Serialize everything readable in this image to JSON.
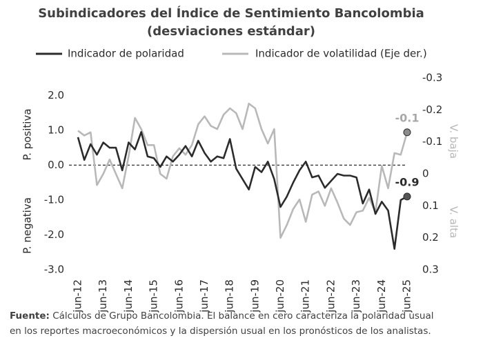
{
  "chart_data": {
    "type": "line",
    "title": "Subindicadores del Índice de Sentimiento Bancolombia",
    "subtitle": "(desviaciones estándar)",
    "categories": [
      "jun-12",
      null,
      null,
      null,
      "jun-13",
      null,
      null,
      null,
      "jun-14",
      null,
      null,
      null,
      "jun-15",
      null,
      null,
      null,
      "jun-16",
      null,
      null,
      null,
      "jun-17",
      null,
      null,
      null,
      "jun-18",
      null,
      null,
      null,
      "jun-19",
      null,
      null,
      null,
      "jun-20",
      null,
      null,
      null,
      "jun-21",
      null,
      null,
      null,
      "jun-22",
      null,
      null,
      null,
      "jun-23",
      null,
      null,
      null,
      "jun-24",
      null,
      null,
      null,
      "jun-25"
    ],
    "series": [
      {
        "name": "Indicador de polaridad",
        "color": "#2b2b2b",
        "values": [
          0.8,
          0.15,
          0.6,
          0.3,
          0.65,
          0.5,
          0.5,
          -0.15,
          0.65,
          0.45,
          0.95,
          0.25,
          0.2,
          -0.05,
          0.25,
          0.1,
          0.3,
          0.55,
          0.25,
          0.7,
          0.35,
          0.1,
          0.25,
          0.2,
          0.75,
          -0.1,
          -0.4,
          -0.7,
          -0.05,
          -0.2,
          0.1,
          -0.4,
          -1.2,
          -0.9,
          -0.5,
          -0.15,
          0.1,
          -0.35,
          -0.3,
          -0.65,
          -0.45,
          -0.25,
          -0.3,
          -0.3,
          -0.35,
          -1.1,
          -0.7,
          -1.4,
          -1.05,
          -1.3,
          -2.4,
          -1.0,
          -0.9
        ]
      },
      {
        "name": "Indicador de volatilidad (Eje der.)",
        "color": "#b8b8b8",
        "axis": "y2",
        "values": [
          -0.135,
          -0.12,
          -0.13,
          0.035,
          0.0,
          -0.045,
          0.0,
          0.045,
          -0.055,
          -0.175,
          -0.14,
          -0.09,
          -0.09,
          0.0,
          0.015,
          -0.055,
          -0.08,
          -0.06,
          -0.09,
          -0.155,
          -0.18,
          -0.15,
          -0.14,
          -0.185,
          -0.205,
          -0.19,
          -0.14,
          -0.22,
          -0.205,
          -0.14,
          -0.095,
          -0.14,
          0.2,
          0.16,
          0.11,
          0.08,
          0.15,
          0.065,
          0.055,
          0.1,
          0.045,
          0.09,
          0.14,
          0.16,
          0.12,
          0.115,
          0.075,
          0.12,
          -0.025,
          0.045,
          -0.065,
          -0.06,
          -0.13
        ],
        "value_labels": [
          null,
          null,
          null,
          null,
          null,
          null,
          null,
          null,
          null,
          null,
          null,
          null,
          null,
          null,
          null,
          null,
          null,
          null,
          null,
          null,
          null,
          null,
          null,
          null,
          null,
          null,
          null,
          null,
          null,
          null,
          null,
          null,
          null,
          null,
          null,
          null,
          null,
          null,
          null,
          null,
          null,
          null,
          null,
          null,
          null,
          null,
          null,
          null,
          null,
          null,
          null,
          null,
          "-0.1"
        ]
      }
    ],
    "ylim": [
      -3,
      2.5
    ],
    "yticks": [
      {
        "value": 2,
        "label": "2.0"
      },
      {
        "value": 1,
        "label": "1.0"
      },
      {
        "value": 0,
        "label": "0.0"
      },
      {
        "value": -1,
        "label": "-1.0"
      },
      {
        "value": -2,
        "label": "-2.0"
      },
      {
        "value": -3,
        "label": "-3.0"
      }
    ],
    "y2lim": [
      0.3,
      -0.3
    ],
    "y2ticks": [
      -0.3,
      -0.2,
      -0.1,
      0,
      0.1,
      0.2,
      0.3
    ],
    "zero_line": true,
    "left_labels": [
      "P. positiva",
      "P. negativa"
    ],
    "right_labels": [
      "V. baja",
      "V. alta"
    ],
    "source_label": "Fuente:",
    "source_lines": [
      "Cálculos de Grupo Bancolombia. El balance en cero caracteriza la polaridad usual",
      "en los reportes macroeconómicos y la dispersión usual en los pronósticos de los analistas."
    ]
  }
}
